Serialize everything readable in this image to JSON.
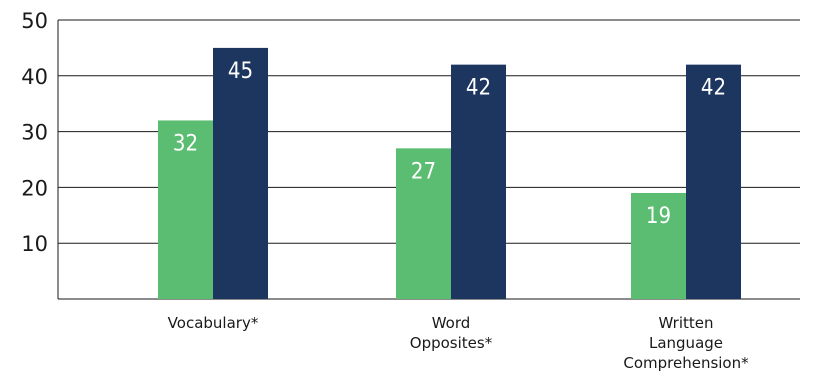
{
  "chart_data": {
    "type": "bar",
    "categories": [
      "Vocabulary*",
      "Word Opposites*",
      "Written Language Comprehension*"
    ],
    "category_lines": [
      [
        "Vocabulary*"
      ],
      [
        "Word",
        "Opposites*"
      ],
      [
        "Written",
        "Language",
        "Comprehension*"
      ]
    ],
    "series": [
      {
        "values": [
          32,
          27,
          19
        ],
        "labels": [
          "32",
          "27",
          "19"
        ],
        "color": "#5bbd72"
      },
      {
        "values": [
          45,
          42,
          42
        ],
        "labels": [
          "45",
          "42",
          "42"
        ],
        "color": "#1c3660"
      }
    ],
    "yticks": [
      10,
      20,
      30,
      40,
      50
    ],
    "ytick_labels": [
      "10",
      "20",
      "30",
      "40",
      "50"
    ],
    "ylim": [
      0,
      50
    ],
    "grid": true,
    "gridline_color": "#1a1a1a"
  }
}
